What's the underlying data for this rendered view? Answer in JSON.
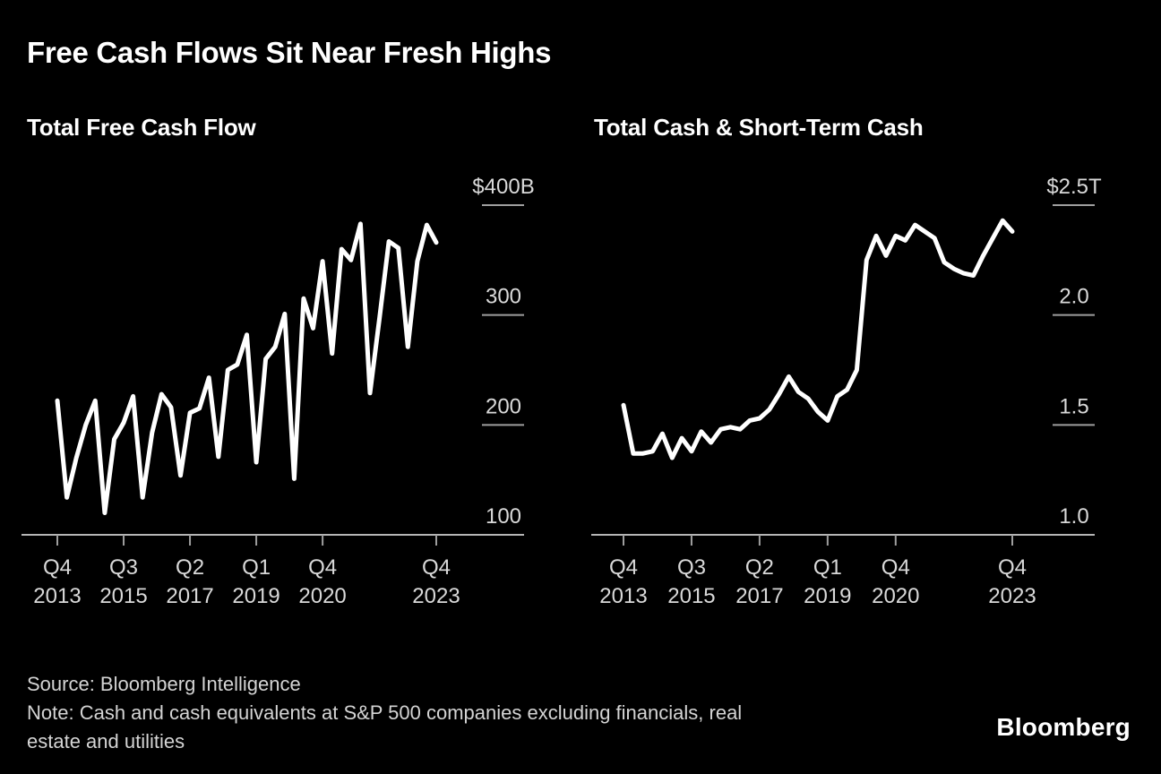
{
  "title": "Free Cash Flows Sit Near Fresh Highs",
  "footer": {
    "source": "Source: Bloomberg Intelligence",
    "note_lines": [
      "Note: Cash and cash equivalents at S&P 500 companies excluding financials, real",
      "estate and utilities"
    ],
    "logo": "Bloomberg"
  },
  "colors": {
    "background": "#000000",
    "line": "#ffffff",
    "axis": "#b5b5b5",
    "tick": "#9e9e9e",
    "label": "#d9d9d9",
    "title": "#ffffff"
  },
  "chart_data": [
    {
      "type": "line",
      "title": "Total Free Cash Flow",
      "unit": "USD billions",
      "legend": "none",
      "grid": "off",
      "y_axis": {
        "min": 100,
        "max": 400,
        "ticks": [
          {
            "label": "$400B",
            "value": 400,
            "tick": true
          },
          {
            "label": "300",
            "value": 300,
            "tick": true
          },
          {
            "label": "200",
            "value": 200,
            "tick": true
          },
          {
            "label": "100",
            "value": 100,
            "tick": false
          }
        ]
      },
      "x_ticks": [
        {
          "quarter": "Q4",
          "year": "2013",
          "index": 0
        },
        {
          "quarter": "Q3",
          "year": "2015",
          "index": 7
        },
        {
          "quarter": "Q2",
          "year": "2017",
          "index": 14
        },
        {
          "quarter": "Q1",
          "year": "2019",
          "index": 21
        },
        {
          "quarter": "Q4",
          "year": "2020",
          "index": 28
        },
        {
          "quarter": "Q4",
          "year": "2023",
          "index": 40
        }
      ],
      "quarters": [
        "Q4 2013",
        "Q1 2014",
        "Q2 2014",
        "Q3 2014",
        "Q4 2014",
        "Q1 2015",
        "Q2 2015",
        "Q3 2015",
        "Q4 2015",
        "Q1 2016",
        "Q2 2016",
        "Q3 2016",
        "Q4 2016",
        "Q1 2017",
        "Q2 2017",
        "Q3 2017",
        "Q4 2017",
        "Q1 2018",
        "Q2 2018",
        "Q3 2018",
        "Q4 2018",
        "Q1 2019",
        "Q2 2019",
        "Q3 2019",
        "Q4 2019",
        "Q1 2020",
        "Q2 2020",
        "Q3 2020",
        "Q4 2020",
        "Q1 2021",
        "Q2 2021",
        "Q3 2021",
        "Q4 2021",
        "Q1 2022",
        "Q2 2022",
        "Q3 2022",
        "Q4 2022",
        "Q1 2023",
        "Q2 2023",
        "Q3 2023",
        "Q4 2023"
      ],
      "values": [
        222,
        134,
        170,
        200,
        222,
        120,
        187,
        202,
        226,
        134,
        193,
        228,
        216,
        154,
        211,
        215,
        243,
        171,
        250,
        255,
        282,
        166,
        260,
        271,
        301,
        151,
        315,
        288,
        349,
        265,
        360,
        350,
        383,
        229,
        297,
        367,
        361,
        271,
        349,
        382,
        366
      ]
    },
    {
      "type": "line",
      "title": "Total Cash & Short-Term Cash",
      "unit": "USD trillions",
      "legend": "none",
      "grid": "off",
      "y_axis": {
        "min": 1.0,
        "max": 2.5,
        "ticks": [
          {
            "label": "$2.5T",
            "value": 2.5,
            "tick": true
          },
          {
            "label": "2.0",
            "value": 2.0,
            "tick": true
          },
          {
            "label": "1.5",
            "value": 1.5,
            "tick": true
          },
          {
            "label": "1.0",
            "value": 1.0,
            "tick": false
          }
        ]
      },
      "x_ticks": [
        {
          "quarter": "Q4",
          "year": "2013",
          "index": 0
        },
        {
          "quarter": "Q3",
          "year": "2015",
          "index": 7
        },
        {
          "quarter": "Q2",
          "year": "2017",
          "index": 14
        },
        {
          "quarter": "Q1",
          "year": "2019",
          "index": 21
        },
        {
          "quarter": "Q4",
          "year": "2020",
          "index": 28
        },
        {
          "quarter": "Q4",
          "year": "2023",
          "index": 40
        }
      ],
      "quarters": [
        "Q4 2013",
        "Q1 2014",
        "Q2 2014",
        "Q3 2014",
        "Q4 2014",
        "Q1 2015",
        "Q2 2015",
        "Q3 2015",
        "Q4 2015",
        "Q1 2016",
        "Q2 2016",
        "Q3 2016",
        "Q4 2016",
        "Q1 2017",
        "Q2 2017",
        "Q3 2017",
        "Q4 2017",
        "Q1 2018",
        "Q2 2018",
        "Q3 2018",
        "Q4 2018",
        "Q1 2019",
        "Q2 2019",
        "Q3 2019",
        "Q4 2019",
        "Q1 2020",
        "Q2 2020",
        "Q3 2020",
        "Q4 2020",
        "Q1 2021",
        "Q2 2021",
        "Q3 2021",
        "Q4 2021",
        "Q1 2022",
        "Q2 2022",
        "Q3 2022",
        "Q4 2022",
        "Q1 2023",
        "Q2 2023",
        "Q3 2023",
        "Q4 2023"
      ],
      "values": [
        1.59,
        1.37,
        1.37,
        1.38,
        1.46,
        1.35,
        1.44,
        1.38,
        1.47,
        1.42,
        1.48,
        1.49,
        1.48,
        1.52,
        1.53,
        1.57,
        1.64,
        1.72,
        1.65,
        1.62,
        1.56,
        1.52,
        1.63,
        1.66,
        1.75,
        2.25,
        2.36,
        2.27,
        2.36,
        2.34,
        2.41,
        2.38,
        2.35,
        2.24,
        2.21,
        2.19,
        2.18,
        2.27,
        2.35,
        2.43,
        2.38
      ]
    }
  ]
}
